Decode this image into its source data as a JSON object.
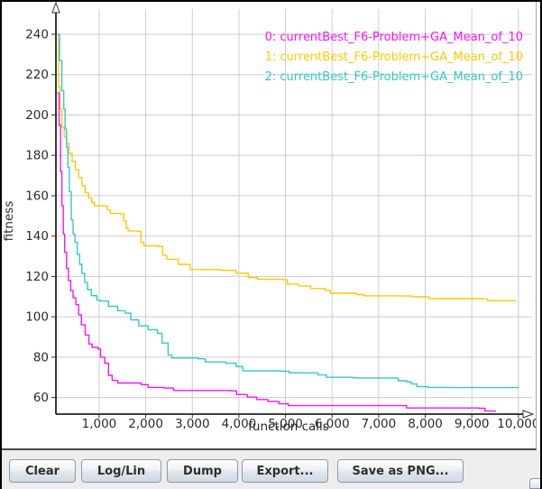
{
  "chart": {
    "legend": [
      {
        "label": "0: currentBest_F6-Problem+GA_Mean_of_10",
        "color": "#fb12fb"
      },
      {
        "label": "1: currentBest_F6-Problem+GA_Mean_of_10",
        "color": "#ffc800"
      },
      {
        "label": "2: currentBest_F6-Problem+GA_Mean_of_10",
        "color": "#35c8c8"
      }
    ]
  },
  "chart_data": {
    "type": "line",
    "title": "",
    "xlabel": "function calls",
    "ylabel": "fitness",
    "xlim": [
      100,
      10400
    ],
    "ylim": [
      51.8,
      251
    ],
    "grid": true,
    "legend_position": "top-right",
    "x_ticks": [
      1000,
      2000,
      3000,
      4000,
      5000,
      6000,
      7000,
      8000,
      9000,
      10000
    ],
    "x_tick_labels": [
      "1,000",
      "2,000",
      "3,000",
      "4,000",
      "5,000",
      "6,000",
      "7,000",
      "8,000",
      "9,000",
      "10,000"
    ],
    "y_ticks": [
      60,
      80,
      100,
      120,
      140,
      160,
      180,
      200,
      220,
      240
    ],
    "series": [
      {
        "name": "0: currentBest_F6-Problem+GA_Mean_of_10",
        "color": "#fb12fb",
        "points": [
          [
            100,
            211
          ],
          [
            140,
            195
          ],
          [
            170,
            172
          ],
          [
            200,
            155
          ],
          [
            230,
            141
          ],
          [
            260,
            132
          ],
          [
            300,
            124
          ],
          [
            340,
            118
          ],
          [
            390,
            113
          ],
          [
            440,
            109.5
          ],
          [
            500,
            106
          ],
          [
            560,
            101
          ],
          [
            620,
            96
          ],
          [
            700,
            91
          ],
          [
            780,
            86.5
          ],
          [
            850,
            84.8
          ],
          [
            980,
            84
          ],
          [
            1030,
            80
          ],
          [
            1120,
            77
          ],
          [
            1200,
            71
          ],
          [
            1280,
            68.5
          ],
          [
            1400,
            67.2
          ],
          [
            1900,
            66.4
          ],
          [
            2050,
            65
          ],
          [
            2400,
            64.7
          ],
          [
            2600,
            63.5
          ],
          [
            3820,
            63.3
          ],
          [
            3950,
            61.5
          ],
          [
            4180,
            60.2
          ],
          [
            4380,
            59
          ],
          [
            4620,
            58.1
          ],
          [
            4860,
            56.9
          ],
          [
            5060,
            56
          ],
          [
            7350,
            56
          ],
          [
            7600,
            54.8
          ],
          [
            9150,
            54.7
          ],
          [
            9280,
            53.3
          ],
          [
            9500,
            52.8
          ]
        ]
      },
      {
        "name": "1: currentBest_F6-Problem+GA_Mean_of_10",
        "color": "#ffc800",
        "points": [
          [
            100,
            240
          ],
          [
            130,
            214
          ],
          [
            160,
            203
          ],
          [
            200,
            194
          ],
          [
            250,
            189
          ],
          [
            300,
            186
          ],
          [
            350,
            181
          ],
          [
            420,
            177
          ],
          [
            490,
            173
          ],
          [
            560,
            169
          ],
          [
            630,
            165
          ],
          [
            700,
            161.5
          ],
          [
            770,
            158.8
          ],
          [
            840,
            156.6
          ],
          [
            900,
            155
          ],
          [
            1130,
            154.8
          ],
          [
            1180,
            152.9
          ],
          [
            1240,
            151.2
          ],
          [
            1470,
            151
          ],
          [
            1530,
            147.5
          ],
          [
            1580,
            144
          ],
          [
            1620,
            142.6
          ],
          [
            1840,
            142.3
          ],
          [
            1900,
            137
          ],
          [
            1960,
            135.2
          ],
          [
            2280,
            134.8
          ],
          [
            2360,
            130.5
          ],
          [
            2450,
            128.5
          ],
          [
            2700,
            126
          ],
          [
            2950,
            123.4
          ],
          [
            3620,
            123
          ],
          [
            3940,
            121.6
          ],
          [
            4200,
            119.4
          ],
          [
            4400,
            118.6
          ],
          [
            4940,
            118.4
          ],
          [
            5040,
            116.2
          ],
          [
            5280,
            115.3
          ],
          [
            5540,
            114
          ],
          [
            5850,
            113.1
          ],
          [
            5960,
            111.7
          ],
          [
            6520,
            111
          ],
          [
            6680,
            110.4
          ],
          [
            7580,
            110.3
          ],
          [
            7700,
            109.9
          ],
          [
            8080,
            109
          ],
          [
            9240,
            108.9
          ],
          [
            9330,
            108
          ],
          [
            9940,
            107.8
          ]
        ]
      },
      {
        "name": "2: currentBest_F6-Problem+GA_Mean_of_10",
        "color": "#35c8c8",
        "points": [
          [
            100,
            240
          ],
          [
            150,
            227
          ],
          [
            200,
            212
          ],
          [
            240,
            203
          ],
          [
            270,
            193
          ],
          [
            300,
            184
          ],
          [
            330,
            174
          ],
          [
            360,
            162
          ],
          [
            400,
            148
          ],
          [
            440,
            141
          ],
          [
            480,
            137
          ],
          [
            530,
            131
          ],
          [
            580,
            126
          ],
          [
            630,
            121.5
          ],
          [
            690,
            117
          ],
          [
            750,
            113.5
          ],
          [
            830,
            110.5
          ],
          [
            950,
            108.3
          ],
          [
            1020,
            107.8
          ],
          [
            1200,
            105.2
          ],
          [
            1400,
            103
          ],
          [
            1560,
            101.8
          ],
          [
            1680,
            98.5
          ],
          [
            1850,
            95.5
          ],
          [
            2050,
            93.6
          ],
          [
            2250,
            91.8
          ],
          [
            2350,
            87
          ],
          [
            2480,
            81
          ],
          [
            2560,
            79.6
          ],
          [
            3120,
            79.2
          ],
          [
            3280,
            77.6
          ],
          [
            3720,
            77
          ],
          [
            3940,
            75.4
          ],
          [
            4080,
            73.2
          ],
          [
            4900,
            73
          ],
          [
            5080,
            72.2
          ],
          [
            5700,
            71.2
          ],
          [
            5880,
            70
          ],
          [
            6420,
            69.9
          ],
          [
            6500,
            69.7
          ],
          [
            7300,
            69.6
          ],
          [
            7420,
            68.3
          ],
          [
            7600,
            67.8
          ],
          [
            7700,
            66.7
          ],
          [
            7820,
            65.4
          ],
          [
            8050,
            65
          ],
          [
            8600,
            64.9
          ],
          [
            10000,
            64.8
          ]
        ]
      }
    ]
  },
  "toolbar": {
    "clear_label": "Clear",
    "loglin_label": "Log/Lin",
    "dump_label": "Dump",
    "export_label": "Export...",
    "savepng_label": "Save as PNG..."
  }
}
